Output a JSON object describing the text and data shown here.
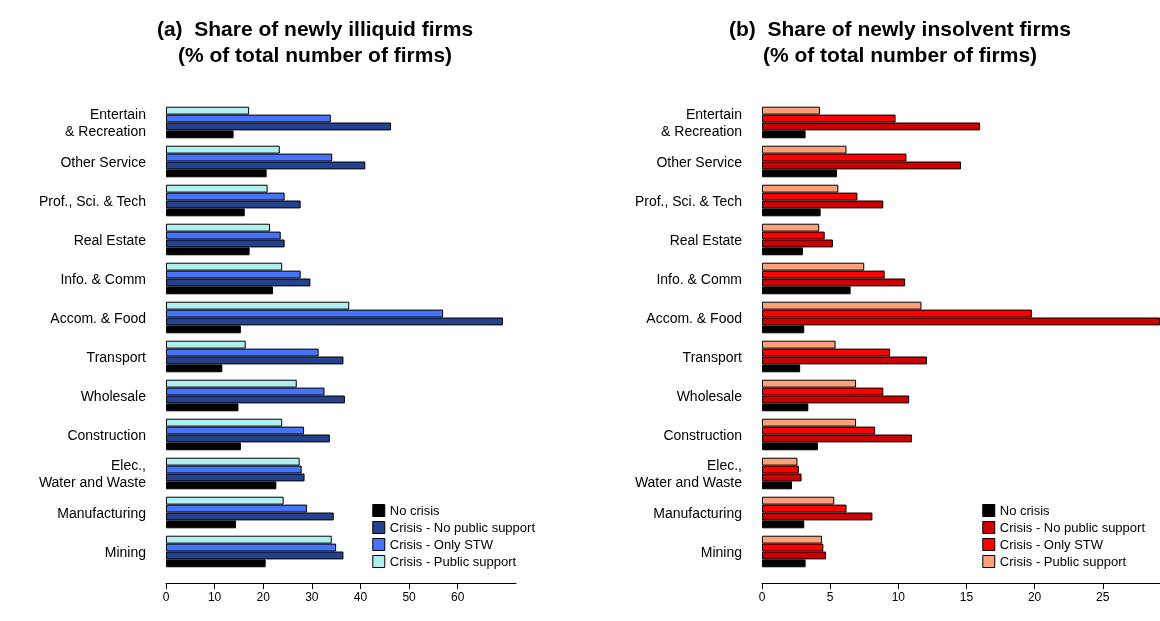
{
  "chart_data": [
    {
      "type": "bar",
      "orientation": "horizontal",
      "title": "(a)  Share of newly illiquid firms\n(% of total number of firms)",
      "categories": [
        "Entertain\n& Recreation",
        "Other Service",
        "Prof., Sci. & Tech",
        "Real Estate",
        "Info. & Comm",
        "Accom. & Food",
        "Transport",
        "Wholesale",
        "Construction",
        "Elec.,\nWater and Waste",
        "Manufacturing",
        "Mining"
      ],
      "series": [
        {
          "name": "No crisis",
          "color": "#000000",
          "values": [
            13.9,
            20.7,
            16.2,
            17.2,
            22.0,
            15.4,
            11.6,
            14.9,
            15.4,
            22.7,
            14.4,
            20.5
          ]
        },
        {
          "name": "Crisis - No public support",
          "color": "#24418e",
          "values": [
            46.3,
            41.0,
            27.7,
            24.4,
            29.7,
            69.3,
            36.5,
            36.8,
            33.7,
            28.5,
            34.5,
            36.5
          ]
        },
        {
          "name": "Crisis - Only STW",
          "color": "#4673fa",
          "values": [
            33.9,
            34.2,
            24.4,
            23.6,
            27.7,
            57.0,
            31.4,
            32.6,
            28.4,
            27.9,
            29.0,
            35.0
          ]
        },
        {
          "name": "Crisis - Public support",
          "color": "#aeeeee",
          "values": [
            17.1,
            23.4,
            20.9,
            21.4,
            23.9,
            37.7,
            16.4,
            26.9,
            23.9,
            27.5,
            24.2,
            34.1
          ]
        }
      ],
      "xlim": [
        0,
        72
      ],
      "xticks": [
        0,
        10,
        20,
        30,
        40,
        50,
        60
      ],
      "legend": "bottom right",
      "grid": false
    },
    {
      "type": "bar",
      "orientation": "horizontal",
      "title": "(b)  Share of newly insolvent firms\n(% of total number of firms)",
      "categories": [
        "Entertain\n& Recreation",
        "Other Service",
        "Prof., Sci. & Tech",
        "Real Estate",
        "Info. & Comm",
        "Accom. & Food",
        "Transport",
        "Wholesale",
        "Construction",
        "Elec.,\nWater and Waste",
        "Manufacturing",
        "Mining"
      ],
      "series": [
        {
          "name": "No crisis",
          "color": "#000000",
          "values": [
            3.2,
            5.5,
            4.3,
            3.0,
            6.5,
            3.1,
            2.8,
            3.4,
            4.1,
            2.2,
            3.1,
            3.2
          ]
        },
        {
          "name": "Crisis - No public support",
          "color": "#cc0000",
          "values": [
            16.0,
            14.6,
            8.9,
            5.2,
            10.5,
            29.2,
            12.1,
            10.8,
            11.0,
            2.9,
            8.1,
            4.7
          ]
        },
        {
          "name": "Crisis - Only STW",
          "color": "#ff0000",
          "values": [
            9.8,
            10.6,
            7.0,
            4.6,
            9.0,
            19.8,
            9.4,
            8.9,
            8.3,
            2.7,
            6.2,
            4.5
          ]
        },
        {
          "name": "Crisis - Public support",
          "color": "#ffa07a",
          "values": [
            4.25,
            6.2,
            5.6,
            4.2,
            7.5,
            11.7,
            5.4,
            6.9,
            6.9,
            2.6,
            5.3,
            4.4
          ]
        }
      ],
      "xlim": [
        0,
        29.2
      ],
      "xticks": [
        0,
        5,
        10,
        15,
        20,
        25
      ],
      "legend": "bottom right",
      "grid": false
    }
  ]
}
